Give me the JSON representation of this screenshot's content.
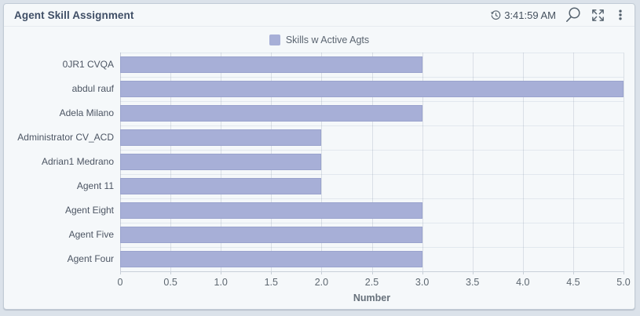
{
  "header": {
    "title": "Agent Skill Assignment",
    "time": "3:41:59 AM"
  },
  "legend": {
    "label": "Skills w Active Agts",
    "marker_color": "#a7afd7"
  },
  "chart_data": {
    "type": "bar",
    "orientation": "horizontal",
    "title": "Agent Skill Assignment",
    "categories": [
      "0JR1 CVQA",
      "abdul rauf",
      "Adela Milano",
      "Administrator CV_ACD",
      "Adrian1 Medrano",
      "Agent 11",
      "Agent Eight",
      "Agent Five",
      "Agent Four"
    ],
    "series": [
      {
        "name": "Skills w Active Agts",
        "values": [
          3,
          5,
          3,
          2,
          2,
          2,
          3,
          3,
          3
        ]
      }
    ],
    "xlabel": "Number",
    "ylabel": "",
    "xlim": [
      0,
      5
    ],
    "xticks": [
      0,
      0.5,
      1,
      1.5,
      2,
      2.5,
      3,
      3.5,
      4,
      4.5,
      5
    ],
    "xtick_labels": [
      "0",
      "0.5",
      "1.0",
      "1.5",
      "2.0",
      "2.5",
      "3.0",
      "3.5",
      "4.0",
      "4.5",
      "5.0"
    ],
    "grid": true,
    "legend_position": "top",
    "bar_color": "#a7afd7"
  }
}
